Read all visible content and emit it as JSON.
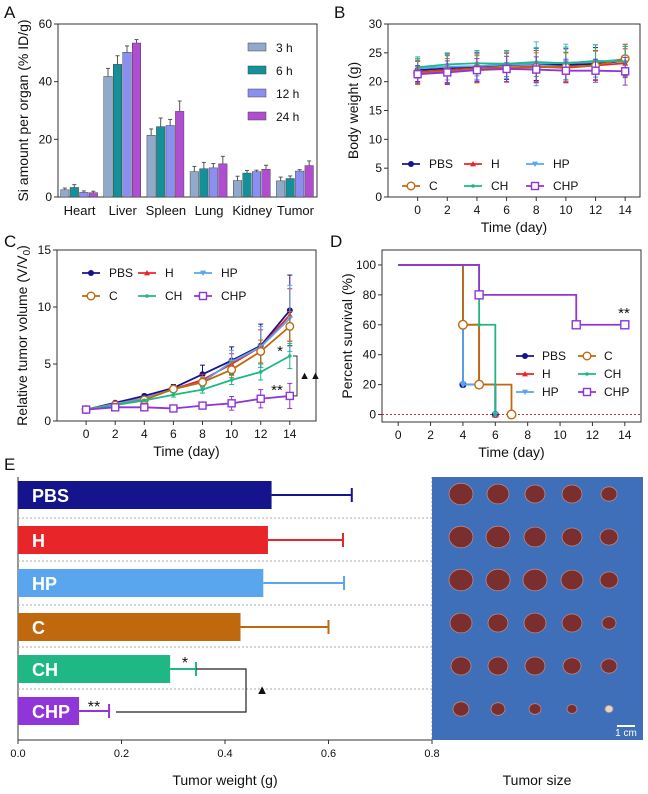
{
  "colors": {
    "PBS": "#14148c",
    "H": "#e8262a",
    "HP": "#5aa6ee",
    "C": "#c0680e",
    "CH": "#1fb884",
    "CHP": "#9035d8",
    "t3": "#91aacb",
    "t6": "#13909a",
    "t12": "#8c8ff2",
    "t24": "#b04ed2",
    "photo_bg": "#3f6fb8"
  },
  "chart_data": [
    {
      "panel": "A",
      "type": "bar",
      "ylabel": "Si amount per organ (% ID/g)",
      "ylim": [
        0,
        60
      ],
      "yticks": [
        0,
        20,
        40,
        60
      ],
      "categories": [
        "Heart",
        "Liver",
        "Spleen",
        "Lung",
        "Kidney",
        "Tumor"
      ],
      "legend": "top-right",
      "series": [
        {
          "name": "3 h",
          "color_key": "t3",
          "values": [
            2.5,
            41.8,
            21.4,
            8.8,
            5.7,
            5.6
          ],
          "errors": [
            0.6,
            2.8,
            2.2,
            1.8,
            1.5,
            1.3
          ]
        },
        {
          "name": "6 h",
          "color_key": "t6",
          "values": [
            3.3,
            46,
            24.4,
            9.8,
            8.3,
            6.4
          ],
          "errors": [
            1.0,
            3.0,
            3.0,
            2.2,
            0.9,
            0.9
          ]
        },
        {
          "name": "12 h",
          "color_key": "t12",
          "values": [
            1.6,
            50.2,
            24.8,
            10.1,
            8.8,
            9.0
          ],
          "errors": [
            0.5,
            2.2,
            2.1,
            1.5,
            0.5,
            0.5
          ]
        },
        {
          "name": "24 h",
          "color_key": "t24",
          "values": [
            1.5,
            53.4,
            29.7,
            11.5,
            9.6,
            10.9
          ],
          "errors": [
            0.5,
            1.2,
            3.6,
            2.6,
            1.4,
            1.6
          ]
        }
      ]
    },
    {
      "panel": "B",
      "type": "line",
      "xlabel": "Time (day)",
      "ylabel": "Body weight (g)",
      "xlim": [
        -2,
        15
      ],
      "ylim": [
        0,
        30
      ],
      "xticks": [
        0,
        2,
        4,
        6,
        8,
        10,
        12,
        14
      ],
      "yticks": [
        0,
        5,
        10,
        15,
        20,
        25,
        30
      ],
      "x": [
        0,
        2,
        4,
        6,
        8,
        10,
        12,
        14
      ],
      "series": [
        {
          "name": "PBS",
          "values": [
            22,
            22.3,
            22.6,
            22.9,
            23,
            22.9,
            23.1,
            23.6
          ],
          "errors": [
            2,
            2.5,
            2.5,
            2.5,
            2.8,
            2.8,
            2.8,
            2.5
          ]
        },
        {
          "name": "H",
          "values": [
            21.7,
            22,
            22.3,
            22.5,
            22.6,
            22.4,
            22.8,
            23.2
          ],
          "errors": [
            2,
            2.5,
            2.5,
            2.5,
            2.8,
            2.6,
            2.6,
            2.5
          ]
        },
        {
          "name": "HP",
          "values": [
            22.3,
            22.6,
            22.7,
            23,
            23.1,
            23.3,
            23.4,
            23.9
          ],
          "errors": [
            1.7,
            2.3,
            2.3,
            2.4,
            3.8,
            3.2,
            3,
            2.5
          ]
        },
        {
          "name": "C",
          "values": [
            21.5,
            21.8,
            22.2,
            22.4,
            22.5,
            22.6,
            22.8,
            24
          ],
          "errors": [
            2,
            2.2,
            2.3,
            2.5,
            2.5,
            2.5,
            2.5,
            2.5
          ]
        },
        {
          "name": "CH",
          "values": [
            22.5,
            23,
            23.2,
            23.1,
            23.4,
            23.2,
            23.6,
            23.5
          ],
          "errors": [
            1.8,
            2,
            2.2,
            2.2,
            2.5,
            2.8,
            2.8,
            2.6
          ]
        },
        {
          "name": "CHP",
          "values": [
            21.3,
            21.6,
            22,
            22.2,
            22.1,
            21.9,
            21.9,
            21.8
          ],
          "errors": [
            1.5,
            2,
            2,
            2.2,
            2.2,
            2,
            2,
            2.4
          ]
        }
      ]
    },
    {
      "panel": "C",
      "type": "line",
      "xlabel": "Time (day)",
      "ylabel": "Relative tumor volume (V/V0)",
      "xlim": [
        -2,
        15.8
      ],
      "ylim": [
        0,
        15
      ],
      "xticks": [
        0,
        2,
        4,
        6,
        8,
        10,
        12,
        14
      ],
      "yticks": [
        0,
        5,
        10,
        15
      ],
      "x": [
        0,
        2,
        4,
        6,
        8,
        10,
        12,
        14
      ],
      "annotations": [
        "*",
        "**",
        "▲▲"
      ],
      "series": [
        {
          "name": "PBS",
          "values": [
            1,
            1.6,
            2.2,
            2.9,
            4.1,
            5.3,
            6.6,
            9.7
          ],
          "errors": [
            0.1,
            0.1,
            0.15,
            0.3,
            0.8,
            1.2,
            1.9,
            3.1
          ]
        },
        {
          "name": "H",
          "values": [
            1,
            1.5,
            2,
            2.8,
            3.6,
            5,
            6.5,
            9.3
          ],
          "errors": [
            0.1,
            0.1,
            0.15,
            0.3,
            0.5,
            0.9,
            1.5,
            2.3
          ]
        },
        {
          "name": "HP",
          "values": [
            1,
            1.5,
            1.95,
            2.8,
            3.4,
            5.2,
            6.5,
            9
          ],
          "errors": [
            0.1,
            0.1,
            0.15,
            0.3,
            0.5,
            1,
            1.8,
            2.9
          ]
        },
        {
          "name": "C",
          "values": [
            1,
            1.4,
            1.85,
            2.8,
            3.4,
            4.5,
            6.1,
            8.3
          ],
          "errors": [
            0.1,
            0.1,
            0.15,
            0.3,
            0.4,
            0.7,
            1,
            1.3
          ]
        },
        {
          "name": "CH",
          "values": [
            1,
            1.4,
            1.8,
            2.3,
            2.75,
            3.6,
            4.3,
            5.7
          ],
          "errors": [
            0.1,
            0.1,
            0.1,
            0.2,
            0.3,
            0.4,
            0.7,
            1.1
          ]
        },
        {
          "name": "CHP",
          "values": [
            1,
            1.2,
            1.2,
            1.1,
            1.35,
            1.55,
            1.95,
            2.2
          ],
          "errors": [
            0.1,
            0.1,
            0.1,
            0.1,
            0.3,
            0.6,
            0.8,
            1.1
          ]
        }
      ]
    },
    {
      "panel": "D",
      "type": "line",
      "subtype": "survival-step",
      "xlabel": "Time (day)",
      "ylabel": "Percent survival (%)",
      "xlim": [
        -1,
        15
      ],
      "ylim": [
        -5,
        110
      ],
      "xticks": [
        0,
        2,
        4,
        6,
        8,
        10,
        12,
        14
      ],
      "yticks": [
        0,
        20,
        40,
        60,
        80,
        100
      ],
      "annotations": [
        "**"
      ],
      "series": [
        {
          "name": "PBS",
          "steps": [
            [
              0,
              100
            ],
            [
              4,
              20
            ],
            [
              6,
              0
            ]
          ]
        },
        {
          "name": "H",
          "steps": [
            [
              0,
              100
            ],
            [
              4,
              60
            ],
            [
              5,
              20
            ],
            [
              6,
              0
            ]
          ]
        },
        {
          "name": "HP",
          "steps": [
            [
              0,
              100
            ],
            [
              4,
              20
            ],
            [
              6,
              0
            ]
          ]
        },
        {
          "name": "C",
          "steps": [
            [
              0,
              100
            ],
            [
              4,
              60
            ],
            [
              5,
              20
            ],
            [
              7,
              0
            ]
          ]
        },
        {
          "name": "CH",
          "steps": [
            [
              0,
              100
            ],
            [
              5,
              60
            ],
            [
              6,
              0
            ]
          ]
        },
        {
          "name": "CHP",
          "steps": [
            [
              0,
              100
            ],
            [
              5,
              80
            ],
            [
              11,
              60
            ],
            [
              14,
              60
            ]
          ]
        }
      ]
    },
    {
      "panel": "E",
      "type": "bar",
      "orientation": "horizontal",
      "xlabel": "Tumor weight (g)",
      "xlim": [
        0,
        0.8
      ],
      "xticks": [
        "0.0",
        "0.2",
        "0.4",
        "0.6",
        "0.8"
      ],
      "categories": [
        "PBS",
        "H",
        "HP",
        "C",
        "CH",
        "CHP"
      ],
      "values": [
        0.49,
        0.483,
        0.474,
        0.43,
        0.294,
        0.118
      ],
      "errors": [
        0.155,
        0.145,
        0.156,
        0.17,
        0.05,
        0.058
      ],
      "annotations": [
        "*",
        "**",
        "▲"
      ]
    }
  ],
  "panel_labels": [
    "A",
    "B",
    "C",
    "D",
    "E"
  ],
  "photo": {
    "caption": "Tumor size",
    "scale_label": "1 cm"
  }
}
